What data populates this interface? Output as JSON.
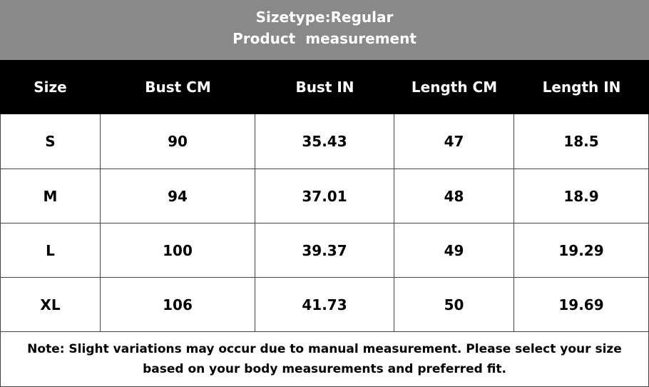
{
  "header": {
    "title": "Sizetype:Regular",
    "subtitle": "Product  measurement"
  },
  "table": {
    "columns": [
      "Size",
      "Bust CM",
      "Bust IN",
      "Length CM",
      "Length IN"
    ],
    "rows": [
      [
        "S",
        90,
        35.43,
        47,
        18.5
      ],
      [
        "M",
        94,
        37.01,
        48,
        18.9
      ],
      [
        "L",
        100,
        39.37,
        49,
        19.29
      ],
      [
        "XL",
        106,
        41.73,
        50,
        19.69
      ]
    ]
  },
  "note": "Note: Slight variations may occur due to manual measurement. Please select your size based on your body measurements and preferred fit."
}
